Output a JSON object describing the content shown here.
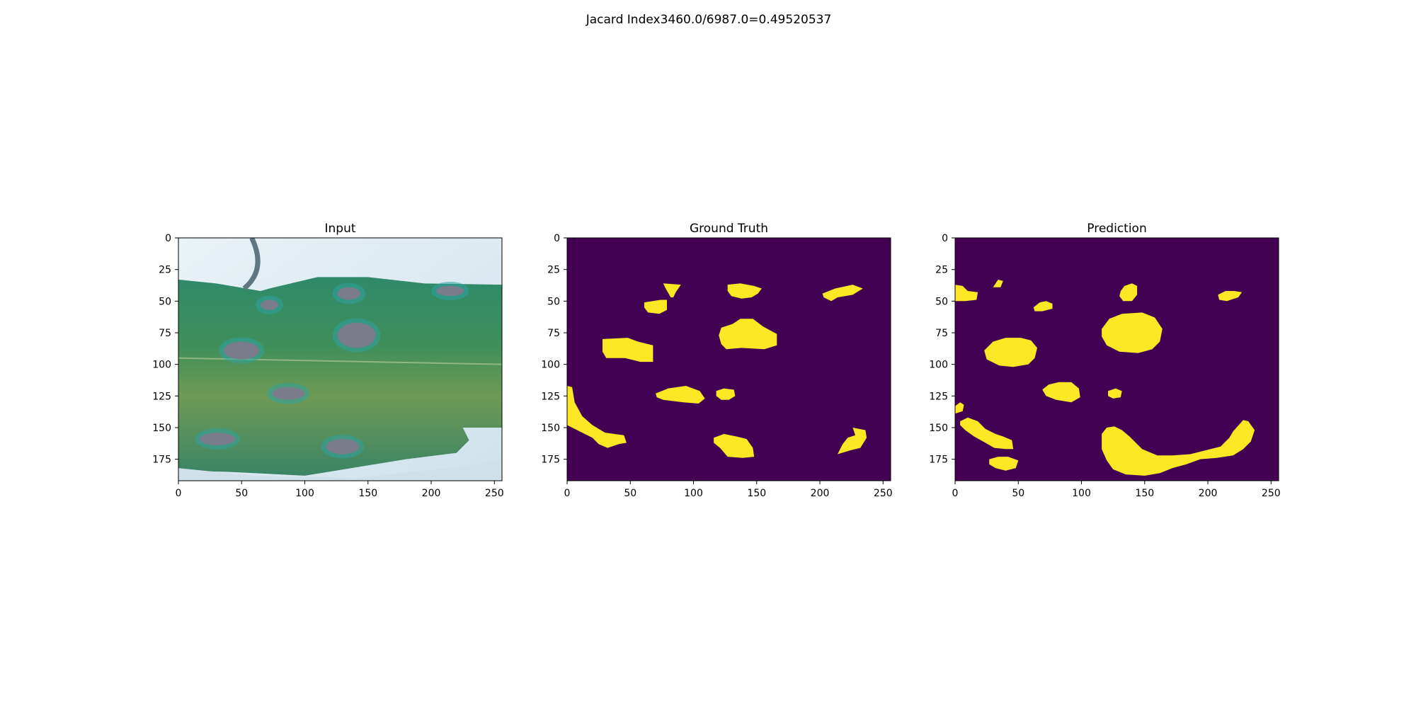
{
  "figure": {
    "suptitle": "Jacard Index3460.0/6987.0=0.49520537"
  },
  "chart_data": [
    {
      "type": "heatmap",
      "title": "Input",
      "content": "photograph of a green leaf with grey-brown lesions",
      "x_range": [
        0,
        256
      ],
      "y_range": [
        0,
        192
      ],
      "y_inverted": true,
      "xticks": [
        0,
        50,
        100,
        150,
        200,
        250
      ],
      "yticks": [
        0,
        25,
        50,
        75,
        100,
        125,
        150,
        175
      ],
      "lesions": [
        {
          "cx": 50,
          "cy": 89,
          "rx": 14,
          "ry": 7
        },
        {
          "cx": 141,
          "cy": 77,
          "rx": 15,
          "ry": 10
        },
        {
          "cx": 135,
          "cy": 44,
          "rx": 9,
          "ry": 5
        },
        {
          "cx": 72,
          "cy": 53,
          "rx": 7,
          "ry": 4
        },
        {
          "cx": 87,
          "cy": 123,
          "rx": 13,
          "ry": 5
        },
        {
          "cx": 31,
          "cy": 159,
          "rx": 14,
          "ry": 5
        },
        {
          "cx": 130,
          "cy": 165,
          "rx": 13,
          "ry": 6
        },
        {
          "cx": 215,
          "cy": 42,
          "rx": 11,
          "ry": 4
        }
      ]
    },
    {
      "type": "heatmap",
      "title": "Ground Truth",
      "x_range": [
        0,
        256
      ],
      "y_range": [
        0,
        192
      ],
      "y_inverted": true,
      "xticks": [
        0,
        50,
        100,
        150,
        200,
        250
      ],
      "yticks": [
        0,
        25,
        50,
        75,
        100,
        125,
        150,
        175
      ],
      "colors": {
        "background": "#440154",
        "mask": "#fde725"
      },
      "regions": [
        [
          [
            28,
            80
          ],
          [
            48,
            79
          ],
          [
            56,
            82
          ],
          [
            68,
            85
          ],
          [
            68,
            98
          ],
          [
            58,
            98
          ],
          [
            46,
            95
          ],
          [
            31,
            95
          ],
          [
            28,
            90
          ]
        ],
        [
          [
            61,
            51
          ],
          [
            74,
            49
          ],
          [
            79,
            49
          ],
          [
            79,
            57
          ],
          [
            73,
            60
          ],
          [
            64,
            59
          ],
          [
            61,
            55
          ]
        ],
        [
          [
            76,
            36
          ],
          [
            90,
            37
          ],
          [
            86,
            43
          ],
          [
            84,
            47
          ],
          [
            82,
            47
          ],
          [
            78,
            40
          ]
        ],
        [
          [
            127,
            37
          ],
          [
            137,
            36
          ],
          [
            148,
            38
          ],
          [
            154,
            40
          ],
          [
            151,
            44
          ],
          [
            146,
            47
          ],
          [
            138,
            48
          ],
          [
            130,
            46
          ],
          [
            127,
            42
          ]
        ],
        [
          [
            122,
            71
          ],
          [
            131,
            68
          ],
          [
            137,
            64
          ],
          [
            147,
            64
          ],
          [
            155,
            70
          ],
          [
            166,
            76
          ],
          [
            166,
            85
          ],
          [
            156,
            88
          ],
          [
            138,
            87
          ],
          [
            126,
            88
          ],
          [
            122,
            84
          ],
          [
            120,
            77
          ]
        ],
        [
          [
            202,
            44
          ],
          [
            212,
            40
          ],
          [
            226,
            37
          ],
          [
            234,
            40
          ],
          [
            226,
            45
          ],
          [
            214,
            47
          ],
          [
            209,
            50
          ],
          [
            203,
            47
          ]
        ],
        [
          [
            70,
            123
          ],
          [
            80,
            119
          ],
          [
            94,
            117
          ],
          [
            105,
            121
          ],
          [
            109,
            127
          ],
          [
            104,
            131
          ],
          [
            92,
            130
          ],
          [
            76,
            128
          ],
          [
            71,
            126
          ]
        ],
        [
          [
            118,
            121
          ],
          [
            124,
            119
          ],
          [
            132,
            120
          ],
          [
            133,
            125
          ],
          [
            128,
            128
          ],
          [
            122,
            128
          ],
          [
            118,
            125
          ]
        ],
        [
          [
            0,
            117
          ],
          [
            4,
            118
          ],
          [
            6,
            130
          ],
          [
            12,
            141
          ],
          [
            20,
            148
          ],
          [
            30,
            154
          ],
          [
            45,
            156
          ],
          [
            47,
            162
          ],
          [
            41,
            163
          ],
          [
            32,
            166
          ],
          [
            25,
            163
          ],
          [
            20,
            158
          ],
          [
            12,
            154
          ],
          [
            6,
            151
          ],
          [
            0,
            148
          ]
        ],
        [
          [
            116,
            158
          ],
          [
            124,
            155
          ],
          [
            134,
            157
          ],
          [
            142,
            159
          ],
          [
            147,
            166
          ],
          [
            148,
            173
          ],
          [
            139,
            174
          ],
          [
            127,
            173
          ],
          [
            121,
            166
          ],
          [
            116,
            162
          ]
        ],
        [
          [
            214,
            171
          ],
          [
            218,
            163
          ],
          [
            222,
            158
          ],
          [
            228,
            156
          ],
          [
            226,
            150
          ],
          [
            236,
            152
          ],
          [
            237,
            158
          ],
          [
            232,
            166
          ],
          [
            224,
            168
          ]
        ]
      ]
    },
    {
      "type": "heatmap",
      "title": "Prediction",
      "x_range": [
        0,
        256
      ],
      "y_range": [
        0,
        192
      ],
      "y_inverted": true,
      "xticks": [
        0,
        50,
        100,
        150,
        200,
        250
      ],
      "yticks": [
        0,
        25,
        50,
        75,
        100,
        125,
        150,
        175
      ],
      "colors": {
        "background": "#440154",
        "mask": "#fde725"
      },
      "regions": [
        [
          [
            0,
            37
          ],
          [
            6,
            38
          ],
          [
            10,
            42
          ],
          [
            18,
            43
          ],
          [
            17,
            49
          ],
          [
            8,
            50
          ],
          [
            0,
            50
          ]
        ],
        [
          [
            30,
            39
          ],
          [
            34,
            33
          ],
          [
            38,
            34
          ],
          [
            36,
            39
          ]
        ],
        [
          [
            62,
            55
          ],
          [
            67,
            51
          ],
          [
            72,
            50
          ],
          [
            77,
            52
          ],
          [
            77,
            56
          ],
          [
            69,
            58
          ],
          [
            63,
            58
          ]
        ],
        [
          [
            131,
            42
          ],
          [
            134,
            38
          ],
          [
            140,
            36
          ],
          [
            144,
            38
          ],
          [
            144,
            45
          ],
          [
            140,
            50
          ],
          [
            133,
            50
          ],
          [
            130,
            46
          ]
        ],
        [
          [
            208,
            45
          ],
          [
            214,
            42
          ],
          [
            221,
            42
          ],
          [
            227,
            43
          ],
          [
            224,
            47
          ],
          [
            215,
            50
          ],
          [
            209,
            49
          ]
        ],
        [
          [
            23,
            89
          ],
          [
            30,
            82
          ],
          [
            40,
            79
          ],
          [
            52,
            79
          ],
          [
            60,
            81
          ],
          [
            65,
            87
          ],
          [
            63,
            95
          ],
          [
            58,
            100
          ],
          [
            46,
            102
          ],
          [
            35,
            101
          ],
          [
            25,
            96
          ]
        ],
        [
          [
            116,
            72
          ],
          [
            122,
            64
          ],
          [
            132,
            60
          ],
          [
            148,
            59
          ],
          [
            158,
            63
          ],
          [
            164,
            72
          ],
          [
            162,
            82
          ],
          [
            156,
            88
          ],
          [
            145,
            91
          ],
          [
            130,
            90
          ],
          [
            120,
            85
          ],
          [
            116,
            78
          ]
        ],
        [
          [
            69,
            120
          ],
          [
            74,
            116
          ],
          [
            82,
            114
          ],
          [
            92,
            114
          ],
          [
            98,
            119
          ],
          [
            99,
            126
          ],
          [
            92,
            130
          ],
          [
            80,
            128
          ],
          [
            72,
            125
          ]
        ],
        [
          [
            121,
            121
          ],
          [
            127,
            119
          ],
          [
            132,
            121
          ],
          [
            131,
            126
          ],
          [
            125,
            127
          ],
          [
            121,
            125
          ]
        ],
        [
          [
            0,
            133
          ],
          [
            4,
            130
          ],
          [
            7,
            132
          ],
          [
            6,
            137
          ],
          [
            0,
            139
          ]
        ],
        [
          [
            4,
            145
          ],
          [
            10,
            142
          ],
          [
            18,
            145
          ],
          [
            24,
            151
          ],
          [
            32,
            155
          ],
          [
            38,
            157
          ],
          [
            45,
            160
          ],
          [
            46,
            167
          ],
          [
            40,
            167
          ],
          [
            31,
            166
          ],
          [
            24,
            162
          ],
          [
            15,
            157
          ],
          [
            8,
            152
          ],
          [
            4,
            148
          ]
        ],
        [
          [
            27,
            175
          ],
          [
            34,
            173
          ],
          [
            42,
            173
          ],
          [
            50,
            176
          ],
          [
            48,
            182
          ],
          [
            40,
            184
          ],
          [
            32,
            182
          ],
          [
            27,
            179
          ]
        ],
        [
          [
            116,
            155
          ],
          [
            120,
            150
          ],
          [
            126,
            149
          ],
          [
            132,
            152
          ],
          [
            138,
            157
          ],
          [
            148,
            167
          ],
          [
            160,
            172
          ],
          [
            172,
            172
          ],
          [
            186,
            171
          ],
          [
            198,
            168
          ],
          [
            210,
            165
          ],
          [
            217,
            158
          ],
          [
            220,
            153
          ],
          [
            228,
            144
          ],
          [
            232,
            145
          ],
          [
            237,
            152
          ],
          [
            234,
            161
          ],
          [
            228,
            167
          ],
          [
            220,
            172
          ],
          [
            207,
            174
          ],
          [
            194,
            175
          ],
          [
            183,
            179
          ],
          [
            172,
            182
          ],
          [
            162,
            186
          ],
          [
            150,
            188
          ],
          [
            135,
            187
          ],
          [
            125,
            183
          ],
          [
            120,
            176
          ],
          [
            116,
            167
          ]
        ]
      ]
    }
  ]
}
